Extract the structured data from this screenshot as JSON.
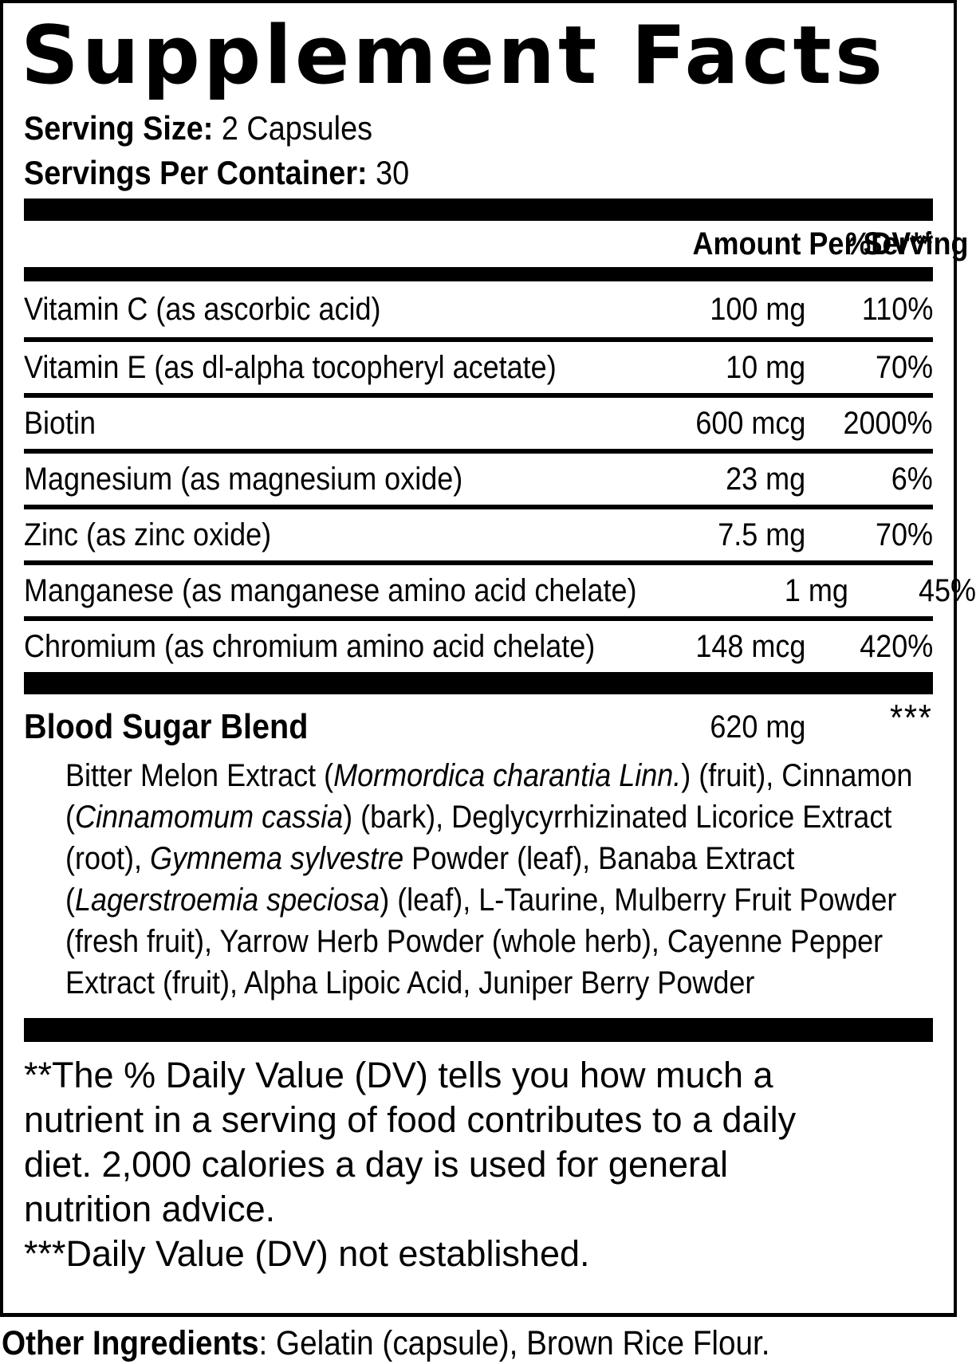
{
  "colors": {
    "text": "#000000",
    "background": "#ffffff"
  },
  "label": {
    "title": "Supplement Facts",
    "serving_size_label": "Serving Size:",
    "serving_size_value": "2 Capsules",
    "servings_per_container_label": "Servings Per Container:",
    "servings_per_container_value": "30",
    "header": {
      "amount": "Amount Per Serving",
      "dv": "%DV**"
    },
    "nutrients": [
      {
        "name": "Vitamin C (as ascorbic acid)",
        "amount": "100 mg",
        "dv": "110%"
      },
      {
        "name": "Vitamin E (as dl-alpha tocopheryl acetate)",
        "amount": "10 mg",
        "dv": "70%"
      },
      {
        "name": "Biotin",
        "amount": "600 mcg",
        "dv": "2000%"
      },
      {
        "name": "Magnesium (as magnesium oxide)",
        "amount": "23 mg",
        "dv": "6%"
      },
      {
        "name": "Zinc (as zinc oxide)",
        "amount": "7.5 mg",
        "dv": "70%"
      },
      {
        "name": "Manganese (as manganese amino acid chelate)",
        "amount": "1 mg",
        "dv": "45%"
      },
      {
        "name": "Chromium (as chromium amino acid chelate)",
        "amount": "148 mcg",
        "dv": "420%"
      }
    ],
    "blend": {
      "name": "Blood Sugar Blend",
      "amount": "620 mg",
      "dv": "***",
      "description_segments": [
        {
          "text": "Bitter Melon Extract (",
          "italic": false
        },
        {
          "text": "Mormordica charantia Linn.",
          "italic": true
        },
        {
          "text": ") (fruit), Cinnamon (",
          "italic": false
        },
        {
          "text": "Cinnamomum cassia",
          "italic": true
        },
        {
          "text": ") (bark), Deglycyrrhizinated Licorice Extract (root), ",
          "italic": false
        },
        {
          "text": "Gymnema sylvestre",
          "italic": true
        },
        {
          "text": " Powder (leaf), Banaba Extract (",
          "italic": false
        },
        {
          "text": "Lagerstroemia speciosa",
          "italic": true
        },
        {
          "text": ") (leaf), L-Taurine, Mulberry Fruit Powder (fresh fruit), Yarrow Herb Powder (whole herb), Cayenne Pepper Extract (fruit), Alpha Lipoic Acid, Juniper Berry Powder",
          "italic": false
        }
      ]
    },
    "footnotes": {
      "dv_note_lines": [
        "**The % Daily Value (DV) tells you how much a",
        "nutrient in a serving of food contributes to a daily",
        "diet. 2,000 calories a day is used for general",
        "nutrition advice."
      ],
      "dv_not_established": "***Daily Value (DV) not established."
    },
    "other_ingredients_label": "Other Ingredients",
    "other_ingredients_value": ": Gelatin (capsule), Brown Rice Flour."
  }
}
